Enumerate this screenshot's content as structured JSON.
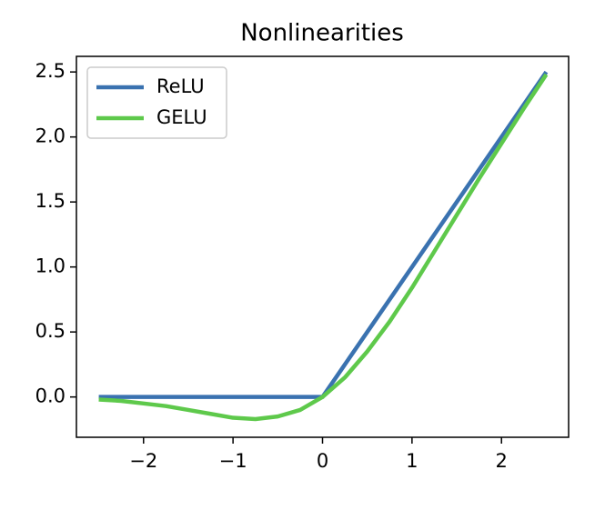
{
  "chart_data": {
    "type": "line",
    "title": "Nonlinearities",
    "x": [
      -2.5,
      -2.25,
      -2,
      -1.75,
      -1.5,
      -1.25,
      -1,
      -0.75,
      -0.5,
      -0.25,
      0,
      0.25,
      0.5,
      0.75,
      1,
      1.25,
      1.5,
      1.75,
      2,
      2.25,
      2.5
    ],
    "series": [
      {
        "name": "ReLU",
        "color": "#3a72b0",
        "values": [
          0,
          0,
          0,
          0,
          0,
          0,
          0,
          0,
          0,
          0,
          0,
          0.25,
          0.5,
          0.75,
          1,
          1.25,
          1.5,
          1.75,
          2,
          2.25,
          2.5
        ]
      },
      {
        "name": "GELU",
        "color": "#5ec94b",
        "values": [
          -0.02,
          -0.03,
          -0.05,
          -0.07,
          -0.1,
          -0.13,
          -0.16,
          -0.17,
          -0.15,
          -0.1,
          0,
          0.15,
          0.35,
          0.58,
          0.84,
          1.12,
          1.4,
          1.68,
          1.95,
          2.22,
          2.48
        ]
      }
    ],
    "xlim": [
      -2.75,
      2.75
    ],
    "ylim": [
      -0.31,
      2.62
    ],
    "xticks": [
      {
        "value": -2,
        "label": "−2"
      },
      {
        "value": -1,
        "label": "−1"
      },
      0,
      1,
      2
    ],
    "yticks": [
      {
        "value": 0,
        "label": "0.0"
      },
      0.5,
      {
        "value": 1,
        "label": "1.0"
      },
      1.5,
      {
        "value": 2,
        "label": "2.0"
      },
      2.5
    ],
    "legend": "upper left",
    "grid": false
  }
}
